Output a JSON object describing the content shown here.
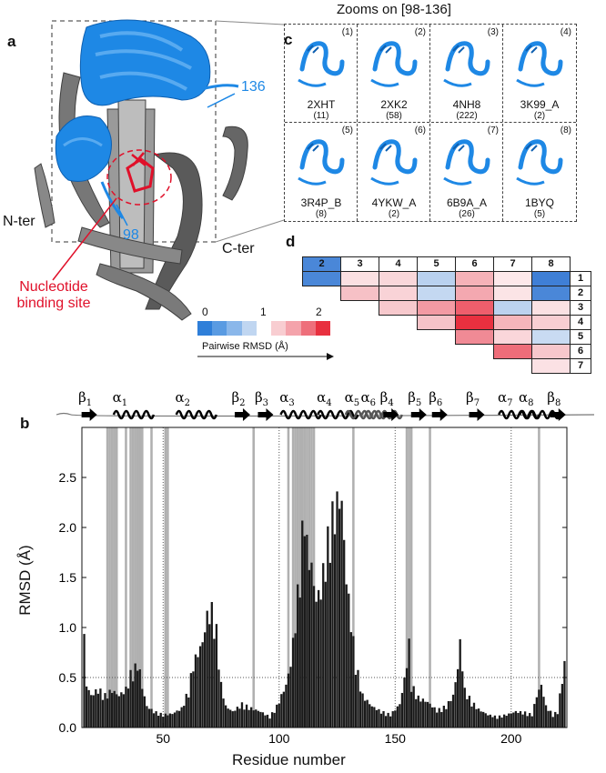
{
  "panel_a": {
    "letter": "a",
    "label_136": "136",
    "label_98": "98",
    "label_nter": "N-ter",
    "label_cter": "C-ter",
    "nucleotide_label": "Nucleotide\nbinding site",
    "colors": {
      "blue": "#1e88e5",
      "gray": "#6e6e6e",
      "red": "#e0102a"
    }
  },
  "panel_c": {
    "letter": "c",
    "title": "Zooms on [98-136]",
    "cells": [
      {
        "num": "(1)",
        "id": "2XHT",
        "count": "(11)"
      },
      {
        "num": "(2)",
        "id": "2XK2",
        "count": "(58)"
      },
      {
        "num": "(3)",
        "id": "4NH8",
        "count": "(222)"
      },
      {
        "num": "(4)",
        "id": "3K99_A",
        "count": "(2)"
      },
      {
        "num": "(5)",
        "id": "3R4P_B",
        "count": "(8)"
      },
      {
        "num": "(6)",
        "id": "4YKW_A",
        "count": "(2)"
      },
      {
        "num": "(7)",
        "id": "6B9A_A",
        "count": "(26)"
      },
      {
        "num": "(8)",
        "id": "1BYQ",
        "count": "(5)"
      }
    ]
  },
  "panel_d": {
    "letter": "d",
    "col_headers": [
      "2",
      "3",
      "4",
      "5",
      "6",
      "7",
      "8"
    ],
    "row_headers": [
      "1",
      "2",
      "3",
      "4",
      "5",
      "6",
      "7"
    ],
    "matrix": [
      [
        "#4a87d8",
        "#fbe0e2",
        "#f9d7da",
        "#b9d1ef",
        "#f5b2b8",
        "#fde8ea",
        "#3f7fd6"
      ],
      [
        null,
        "#f6c1c6",
        "#f9d3d7",
        "#c4d8f1",
        "#f4a8b0",
        "#fbe4e6",
        "#4a87d8"
      ],
      [
        null,
        null,
        "#f7c9cd",
        "#f39aa3",
        "#ee5e6c",
        "#bcd2ef",
        "#fbe1e3"
      ],
      [
        null,
        null,
        null,
        "#f6c3c8",
        "#e8303f",
        "#f5b5bb",
        "#f8ced2"
      ],
      [
        null,
        null,
        null,
        null,
        "#f08a95",
        "#fad6da",
        "#c9dbf2"
      ],
      [
        null,
        null,
        null,
        null,
        null,
        "#ee6d79",
        "#f7c7cc"
      ],
      [
        null,
        null,
        null,
        null,
        null,
        null,
        "#fbe1e4"
      ]
    ],
    "legend_ticks": [
      "0",
      "1",
      "2"
    ],
    "legend_label": "Pairwise RMSD (Å)",
    "legend_colors": [
      "#2f7fd9",
      "#5a9be2",
      "#8ab7ea",
      "#c0d6f1",
      "#ffffff",
      "#f8cdd1",
      "#f4a3ab",
      "#ee6f7b",
      "#e8303f"
    ]
  },
  "panel_b": {
    "letter": "b",
    "ss_labels": [
      {
        "name": "β",
        "sub": "1",
        "res": 18
      },
      {
        "name": "α",
        "sub": "1",
        "res": 33
      },
      {
        "name": "α",
        "sub": "2",
        "res": 60
      },
      {
        "name": "β",
        "sub": "2",
        "res": 84
      },
      {
        "name": "β",
        "sub": "3",
        "res": 94
      },
      {
        "name": "α",
        "sub": "3",
        "res": 105
      },
      {
        "name": "α",
        "sub": "4",
        "res": 121
      },
      {
        "name": "α",
        "sub": "5",
        "res": 133
      },
      {
        "name": "α",
        "sub": "6",
        "res": 140
      },
      {
        "name": "β",
        "sub": "4",
        "res": 148
      },
      {
        "name": "β",
        "sub": "5",
        "res": 160
      },
      {
        "name": "β",
        "sub": "6",
        "res": 169
      },
      {
        "name": "β",
        "sub": "7",
        "res": 185
      },
      {
        "name": "α",
        "sub": "7",
        "res": 199
      },
      {
        "name": "α",
        "sub": "8",
        "res": 208
      },
      {
        "name": "β",
        "sub": "8",
        "res": 220
      }
    ]
  },
  "chart_data": {
    "type": "bar",
    "title": "",
    "xlabel": "Residue number",
    "ylabel": "RMSD (Å)",
    "xlim": [
      15,
      224
    ],
    "ylim": [
      0,
      3.0
    ],
    "xticks": [
      50,
      100,
      150,
      200
    ],
    "yticks": [
      0.0,
      0.5,
      1.0,
      1.5,
      2.0,
      2.5
    ],
    "threshold": 0.5,
    "dotted_vlines": [
      50,
      100,
      150,
      200
    ],
    "highlighted_residues": [
      26,
      27,
      28,
      29,
      30,
      34,
      36,
      37,
      38,
      39,
      40,
      41,
      45,
      51,
      52,
      89,
      104,
      106,
      107,
      108,
      109,
      110,
      111,
      112,
      113,
      114,
      115,
      132,
      155,
      156,
      157,
      165,
      212
    ],
    "rmsd_keypoints": [
      [
        16,
        0.84
      ],
      [
        17,
        0.4
      ],
      [
        19,
        0.3
      ],
      [
        22,
        0.36
      ],
      [
        25,
        0.3
      ],
      [
        28,
        0.35
      ],
      [
        31,
        0.3
      ],
      [
        34,
        0.36
      ],
      [
        36,
        0.5
      ],
      [
        38,
        0.56
      ],
      [
        39,
        0.6
      ],
      [
        40,
        0.52
      ],
      [
        41,
        0.38
      ],
      [
        43,
        0.2
      ],
      [
        46,
        0.15
      ],
      [
        50,
        0.12
      ],
      [
        54,
        0.13
      ],
      [
        58,
        0.18
      ],
      [
        61,
        0.35
      ],
      [
        63,
        0.6
      ],
      [
        65,
        0.7
      ],
      [
        67,
        0.8
      ],
      [
        69,
        1.05
      ],
      [
        71,
        1.1
      ],
      [
        73,
        0.9
      ],
      [
        75,
        0.4
      ],
      [
        77,
        0.2
      ],
      [
        80,
        0.15
      ],
      [
        84,
        0.22
      ],
      [
        88,
        0.18
      ],
      [
        92,
        0.15
      ],
      [
        96,
        0.1
      ],
      [
        99,
        0.2
      ],
      [
        101,
        0.3
      ],
      [
        103,
        0.4
      ],
      [
        105,
        0.6
      ],
      [
        107,
        1.0
      ],
      [
        109,
        1.5
      ],
      [
        110,
        1.8
      ],
      [
        111,
        2.1
      ],
      [
        112,
        1.7
      ],
      [
        114,
        1.5
      ],
      [
        116,
        1.2
      ],
      [
        118,
        1.3
      ],
      [
        120,
        1.6
      ],
      [
        122,
        1.9
      ],
      [
        124,
        2.05
      ],
      [
        126,
        2.16
      ],
      [
        127,
        2.1
      ],
      [
        129,
        1.4
      ],
      [
        131,
        1.0
      ],
      [
        133,
        0.6
      ],
      [
        136,
        0.3
      ],
      [
        140,
        0.2
      ],
      [
        144,
        0.15
      ],
      [
        148,
        0.12
      ],
      [
        152,
        0.22
      ],
      [
        154,
        0.45
      ],
      [
        156,
        0.78
      ],
      [
        157,
        0.4
      ],
      [
        160,
        0.28
      ],
      [
        164,
        0.24
      ],
      [
        168,
        0.16
      ],
      [
        172,
        0.2
      ],
      [
        175,
        0.3
      ],
      [
        177,
        0.56
      ],
      [
        178,
        0.8
      ],
      [
        180,
        0.35
      ],
      [
        183,
        0.24
      ],
      [
        186,
        0.17
      ],
      [
        190,
        0.12
      ],
      [
        194,
        0.1
      ],
      [
        198,
        0.12
      ],
      [
        202,
        0.15
      ],
      [
        206,
        0.14
      ],
      [
        209,
        0.12
      ],
      [
        211,
        0.3
      ],
      [
        213,
        0.4
      ],
      [
        215,
        0.2
      ],
      [
        218,
        0.12
      ],
      [
        220,
        0.15
      ],
      [
        222,
        0.45
      ],
      [
        223,
        0.6
      ]
    ],
    "bar_color": "#1a1a1a",
    "highlight_color": "#b0b0b0",
    "grid": false
  }
}
